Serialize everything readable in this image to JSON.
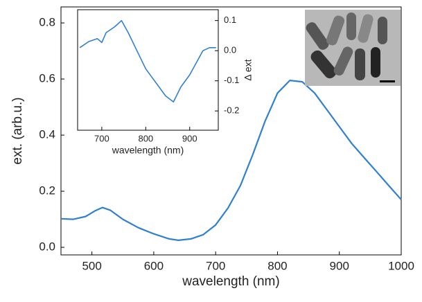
{
  "chart_data": [
    {
      "type": "line",
      "xlabel": "wavelength (nm)",
      "ylabel": "ext. (arb.u.)",
      "x": [
        450,
        470,
        490,
        505,
        517,
        530,
        550,
        575,
        600,
        625,
        640,
        660,
        680,
        700,
        720,
        740,
        760,
        780,
        800,
        820,
        840,
        860,
        880,
        900,
        920,
        940,
        960,
        980,
        1000
      ],
      "values": [
        0.102,
        0.1,
        0.11,
        0.13,
        0.142,
        0.132,
        0.1,
        0.07,
        0.048,
        0.03,
        0.025,
        0.03,
        0.045,
        0.08,
        0.14,
        0.22,
        0.33,
        0.45,
        0.55,
        0.595,
        0.59,
        0.55,
        0.49,
        0.43,
        0.37,
        0.32,
        0.27,
        0.22,
        0.17
      ],
      "color": "#2f7fd3",
      "xlim": [
        450,
        1000
      ],
      "xticks": [
        500,
        600,
        700,
        800,
        900,
        1000
      ],
      "ylim": [
        -0.027,
        0.857
      ],
      "yticks": [
        {
          "value": 0,
          "label": "0.0"
        },
        0.2,
        0.4,
        0.6,
        0.8
      ]
    },
    {
      "type": "line",
      "xlabel": "wavelength (nm)",
      "ylabel": "Δ ext",
      "x": [
        650,
        670,
        690,
        700,
        710,
        730,
        745,
        760,
        780,
        800,
        815,
        830,
        845,
        863,
        880,
        900,
        915,
        930,
        945,
        960
      ],
      "values": [
        0.01,
        0.03,
        0.04,
        0.027,
        0.06,
        0.08,
        0.1,
        0.06,
        0.0,
        -0.06,
        -0.09,
        -0.12,
        -0.15,
        -0.17,
        -0.12,
        -0.08,
        -0.04,
        0.0,
        0.01,
        0.01
      ],
      "color": "#2f7fd3",
      "xlim": [
        645,
        965
      ],
      "xticks": [
        700,
        800,
        900
      ],
      "ylim": [
        -0.264,
        0.136
      ],
      "yticks": [
        0.1,
        {
          "value": 0,
          "label": "0.0"
        },
        -0.1,
        -0.2
      ]
    }
  ]
}
